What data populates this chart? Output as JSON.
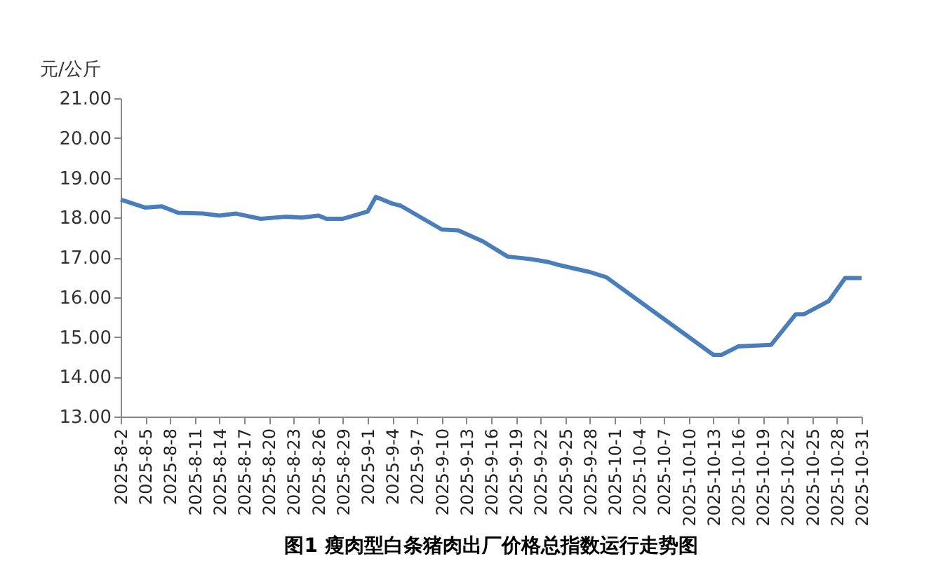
{
  "chart_data": {
    "type": "line",
    "title": "图1  瘦肉型白条猪肉出厂价格总指数运行走势图",
    "ylabel": "元/公斤",
    "x": [
      "2025-08-02",
      "2025-08-05",
      "2025-08-07",
      "2025-08-09",
      "2025-08-12",
      "2025-08-14",
      "2025-08-16",
      "2025-08-19",
      "2025-08-22",
      "2025-08-24",
      "2025-08-26",
      "2025-08-27",
      "2025-08-29",
      "2025-09-01",
      "2025-09-02",
      "2025-09-04",
      "2025-09-05",
      "2025-09-10",
      "2025-09-12",
      "2025-09-15",
      "2025-09-18",
      "2025-09-21",
      "2025-09-23",
      "2025-09-24",
      "2025-09-28",
      "2025-09-30",
      "2025-10-08",
      "2025-10-10",
      "2025-10-13",
      "2025-10-14",
      "2025-10-16",
      "2025-10-20",
      "2025-10-23",
      "2025-10-24",
      "2025-10-27",
      "2025-10-29",
      "2025-10-31"
    ],
    "series": [
      {
        "color": "#4a7ebb",
        "values": [
          18.45,
          18.25,
          18.28,
          18.12,
          18.1,
          18.05,
          18.1,
          17.97,
          18.02,
          18.0,
          18.05,
          17.97,
          17.97,
          18.15,
          18.52,
          18.35,
          18.3,
          17.7,
          17.68,
          17.4,
          17.02,
          16.95,
          16.88,
          16.82,
          16.63,
          16.5,
          15.3,
          15.0,
          14.55,
          14.55,
          14.76,
          14.8,
          15.57,
          15.57,
          15.9,
          16.48,
          16.48
        ]
      }
    ],
    "xlim": [
      "2025-08-02",
      "2025-10-31"
    ],
    "xticks": [
      {
        "value": "2025-08-02",
        "label": "2025-8-2"
      },
      {
        "value": "2025-08-05",
        "label": "2025-8-5"
      },
      {
        "value": "2025-08-08",
        "label": "2025-8-8"
      },
      {
        "value": "2025-08-11",
        "label": "2025-8-11"
      },
      {
        "value": "2025-08-14",
        "label": "2025-8-14"
      },
      {
        "value": "2025-08-17",
        "label": "2025-8-17"
      },
      {
        "value": "2025-08-20",
        "label": "2025-8-20"
      },
      {
        "value": "2025-08-23",
        "label": "2025-8-23"
      },
      {
        "value": "2025-08-26",
        "label": "2025-8-26"
      },
      {
        "value": "2025-08-29",
        "label": "2025-8-29"
      },
      {
        "value": "2025-09-01",
        "label": "2025-9-1"
      },
      {
        "value": "2025-09-04",
        "label": "2025-9-4"
      },
      {
        "value": "2025-09-07",
        "label": "2025-9-7"
      },
      {
        "value": "2025-09-10",
        "label": "2025-9-10"
      },
      {
        "value": "2025-09-13",
        "label": "2025-9-13"
      },
      {
        "value": "2025-09-16",
        "label": "2025-9-16"
      },
      {
        "value": "2025-09-19",
        "label": "2025-9-19"
      },
      {
        "value": "2025-09-22",
        "label": "2025-9-22"
      },
      {
        "value": "2025-09-25",
        "label": "2025-9-25"
      },
      {
        "value": "2025-09-28",
        "label": "2025-9-28"
      },
      {
        "value": "2025-10-01",
        "label": "2025-10-1"
      },
      {
        "value": "2025-10-04",
        "label": "2025-10-4"
      },
      {
        "value": "2025-10-07",
        "label": "2025-10-7"
      },
      {
        "value": "2025-10-10",
        "label": "2025-10-10"
      },
      {
        "value": "2025-10-13",
        "label": "2025-10-13"
      },
      {
        "value": "2025-10-16",
        "label": "2025-10-16"
      },
      {
        "value": "2025-10-19",
        "label": "2025-10-19"
      },
      {
        "value": "2025-10-22",
        "label": "2025-10-22"
      },
      {
        "value": "2025-10-25",
        "label": "2025-10-25"
      },
      {
        "value": "2025-10-28",
        "label": "2025-10-28"
      },
      {
        "value": "2025-10-31",
        "label": "2025-10-31"
      }
    ],
    "ylim": [
      13,
      21
    ],
    "yticks": [
      {
        "value": 13,
        "label": "13.00"
      },
      {
        "value": 14,
        "label": "14.00"
      },
      {
        "value": 15,
        "label": "15.00"
      },
      {
        "value": 16,
        "label": "16.00"
      },
      {
        "value": 17,
        "label": "17.00"
      },
      {
        "value": 18,
        "label": "18.00"
      },
      {
        "value": 19,
        "label": "19.00"
      },
      {
        "value": 20,
        "label": "20.00"
      },
      {
        "value": 21,
        "label": "21.00"
      }
    ],
    "grid": false,
    "legend": false,
    "marker": "none",
    "line_style": "solid"
  }
}
